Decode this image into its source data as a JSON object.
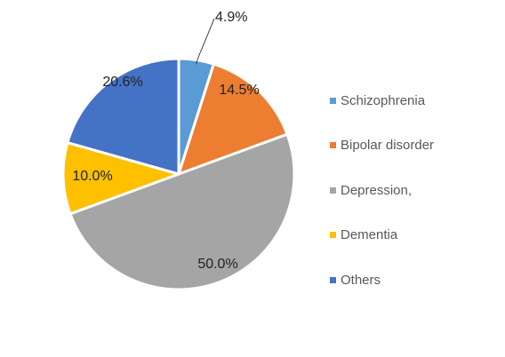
{
  "chart_data": {
    "type": "pie",
    "legend_position": "right",
    "slices": [
      {
        "label": "Schizophrenia",
        "value": 4.9,
        "value_label": "4.9%",
        "color": "#5b9bd5"
      },
      {
        "label": "Bipolar disorder",
        "value": 14.5,
        "value_label": "14.5%",
        "color": "#ed7d31"
      },
      {
        "label": "Depression,",
        "value": 50.0,
        "value_label": "50.0%",
        "color": "#a5a5a5"
      },
      {
        "label": "Dementia",
        "value": 10.0,
        "value_label": "10.0%",
        "color": "#ffc000"
      },
      {
        "label": "Others",
        "value": 20.6,
        "value_label": "20.6%",
        "color": "#4472c4"
      }
    ]
  }
}
